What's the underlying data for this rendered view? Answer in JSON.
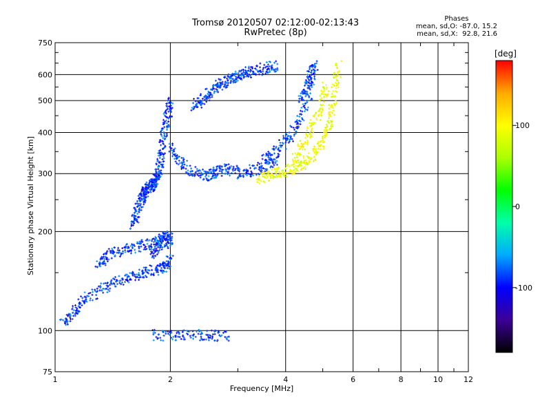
{
  "chart_data": {
    "type": "scatter",
    "title": "Tromsø 20120507 02:12:00-02:13:43",
    "subtitle": "RwPretec (8p)",
    "xlabel": "Frequency [MHz]",
    "ylabel": "Stationary phase Virtual Height [km]",
    "xscale": "log",
    "yscale": "log",
    "xlim": [
      1,
      12
    ],
    "ylim": [
      75,
      750
    ],
    "xticks": [
      1,
      2,
      4,
      6,
      8,
      10,
      12
    ],
    "xtick_labels": [
      "1",
      "2",
      "4",
      "6",
      "8",
      "10",
      "12"
    ],
    "yticks": [
      75,
      100,
      200,
      300,
      400,
      500,
      600,
      750
    ],
    "ytick_labels": [
      "75",
      "100",
      "200",
      "300",
      "400",
      "500",
      "600",
      "750"
    ],
    "grid": true,
    "annotation": {
      "heading": "Phases",
      "line1": "mean, sd,O: -87.0, 15.2",
      "line2": "mean, sd,X:  92.8, 21.6"
    },
    "colorbar": {
      "label": "[deg]",
      "range": [
        -180,
        180
      ],
      "ticks": [
        100,
        0,
        -100
      ],
      "tick_labels": [
        "100",
        "0",
        "-100"
      ],
      "colors": [
        "#000000",
        "#3c0096",
        "#0000ff",
        "#00aaff",
        "#00ffaa",
        "#00ff00",
        "#aaff00",
        "#ffff00",
        "#ffaa00",
        "#ff0000"
      ]
    },
    "series": [
      {
        "mode": "O",
        "phase_mean": -87.0,
        "traces": [
          {
            "x": [
              1.6,
              1.62,
              1.65,
              1.68,
              1.7,
              1.72,
              1.75,
              1.78,
              1.8,
              1.82,
              1.84,
              1.86,
              1.88,
              1.9,
              1.92,
              1.95,
              1.98,
              2.0
            ],
            "y": [
              210,
              220,
              235,
              250,
              258,
              265,
              270,
              275,
              278,
              282,
              290,
              300,
              320,
              350,
              390,
              430,
              460,
              500
            ]
          },
          {
            "x": [
              2.0,
              2.1,
              2.2,
              2.35,
              2.5,
              2.6,
              2.7,
              2.85,
              3.0,
              3.2,
              3.4,
              3.6,
              3.8
            ],
            "y": [
              360,
              330,
              310,
              300,
              295,
              300,
              305,
              310,
              300,
              305,
              310,
              320,
              330
            ]
          },
          {
            "x": [
              2.3,
              2.4,
              2.5,
              2.6,
              2.7,
              2.8,
              2.9,
              3.0,
              3.1,
              3.2,
              3.4,
              3.6,
              3.8
            ],
            "y": [
              480,
              500,
              520,
              540,
              560,
              570,
              585,
              595,
              600,
              610,
              620,
              630,
              635
            ]
          },
          {
            "x": [
              3.5,
              3.7,
              3.9,
              4.1,
              4.3,
              4.5,
              4.7
            ],
            "y": [
              330,
              345,
              365,
              390,
              420,
              480,
              560
            ]
          },
          {
            "x": [
              4.4,
              4.5,
              4.6,
              4.7,
              4.8
            ],
            "y": [
              500,
              540,
              580,
              610,
              640
            ]
          },
          {
            "x": [
              1.05,
              1.1,
              1.15,
              1.2,
              1.3,
              1.4,
              1.5,
              1.6,
              1.7,
              1.8,
              1.9,
              1.95,
              2.0
            ],
            "y": [
              105,
              112,
              118,
              125,
              132,
              138,
              142,
              146,
              150,
              152,
              155,
              158,
              165
            ]
          },
          {
            "x": [
              1.8,
              1.85,
              1.9,
              1.95,
              2.0
            ],
            "y": [
              170,
              180,
              185,
              190,
              185
            ]
          },
          {
            "x": [
              1.3,
              1.35,
              1.4,
              1.5,
              1.6,
              1.7,
              1.8,
              1.9,
              2.0
            ],
            "y": [
              160,
              165,
              172,
              175,
              178,
              182,
              186,
              190,
              195
            ]
          },
          {
            "x": [
              1.8,
              2.0,
              2.2,
              2.4,
              2.6,
              2.8
            ],
            "y": [
              97,
              96.5,
              96.5,
              97,
              96.5,
              96.5
            ]
          }
        ]
      },
      {
        "mode": "X",
        "phase_mean": 92.8,
        "traces": [
          {
            "x": [
              3.4,
              3.6,
              3.8,
              4.0,
              4.2,
              4.4,
              4.6,
              4.8,
              5.0,
              5.2,
              5.3,
              5.4,
              5.5
            ],
            "y": [
              290,
              295,
              300,
              305,
              310,
              320,
              330,
              350,
              380,
              430,
              480,
              560,
              640
            ]
          },
          {
            "x": [
              4.2,
              4.4,
              4.6,
              4.8,
              5.0,
              5.1
            ],
            "y": [
              330,
              360,
              400,
              440,
              500,
              560
            ]
          }
        ]
      }
    ]
  }
}
